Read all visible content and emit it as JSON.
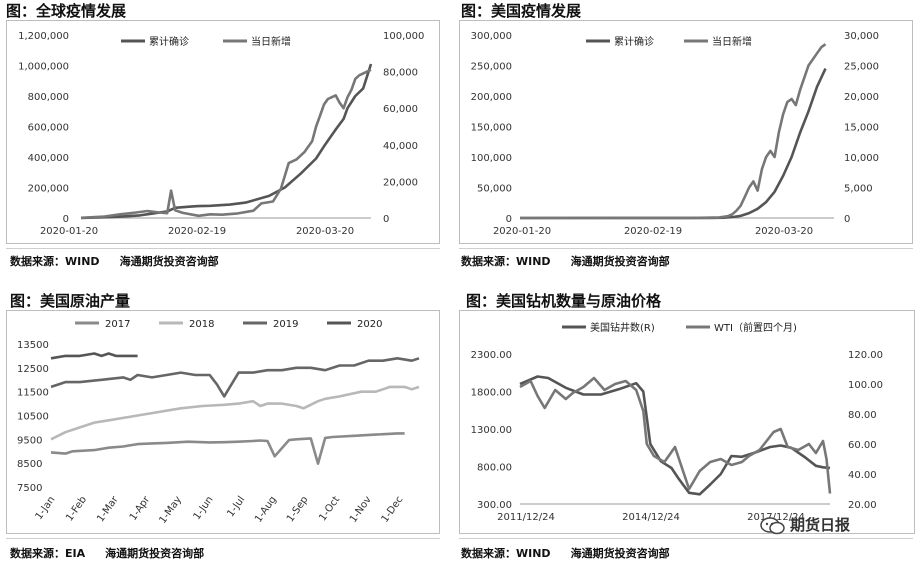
{
  "panels": {
    "p1": {
      "title": "图：全球疫情发展",
      "source_label": "数据来源：WIND",
      "source_org": "海通期货投资咨询部"
    },
    "p2": {
      "title": "图：美国疫情发展",
      "source_label": "数据来源：WIND",
      "source_org": "海通期货投资咨询部"
    },
    "p3": {
      "title": "图：美国原油产量",
      "source_label": "数据来源：EIA",
      "source_org": "海通期货投资咨询部"
    },
    "p4": {
      "title": "图：美国钻机数量与原油价格",
      "source_label": "数据来源：WIND",
      "source_org": "海通期货投资咨询部"
    }
  },
  "watermark": {
    "text": "期货日报",
    "icon": "wechat-icon"
  },
  "chart_data": [
    {
      "id": "global",
      "type": "line",
      "x_ticks": [
        "2020-01-20",
        "2020-02-19",
        "2020-03-20"
      ],
      "x_range": [
        0,
        74
      ],
      "y_left": {
        "ticks": [
          "0",
          "200,000",
          "400,000",
          "600,000",
          "800,000",
          "1,000,000",
          "1,200,000"
        ],
        "range": [
          0,
          1200000
        ]
      },
      "y_right": {
        "ticks": [
          "0",
          "20,000",
          "40,000",
          "60,000",
          "80,000",
          "100,000"
        ],
        "range": [
          0,
          100000
        ]
      },
      "legend_position": "top-right",
      "series": [
        {
          "name": "累计确诊",
          "axis": "left",
          "color": "#555555",
          "x": [
            0,
            8,
            15,
            18,
            22,
            24,
            28,
            30,
            33,
            38,
            42,
            48,
            52,
            56,
            60,
            62,
            65,
            67,
            68,
            70,
            72,
            73,
            74
          ],
          "y": [
            600,
            6000,
            17000,
            28000,
            43000,
            67000,
            75000,
            78000,
            80000,
            88000,
            101000,
            145000,
            200000,
            290000,
            390000,
            470000,
            580000,
            650000,
            720000,
            800000,
            850000,
            930000,
            1010000
          ]
        },
        {
          "name": "当日新增",
          "axis": "right",
          "color": "#777777",
          "x": [
            0,
            6,
            10,
            14,
            17,
            20,
            22,
            23,
            24,
            26,
            30,
            33,
            36,
            40,
            44,
            46,
            49,
            51,
            53,
            55,
            57,
            59,
            60,
            61,
            62,
            63,
            64,
            65,
            66,
            67,
            68,
            69,
            70,
            71,
            72,
            73,
            74
          ],
          "y": [
            100,
            800,
            2000,
            3000,
            3800,
            3000,
            2600,
            15000,
            4200,
            2800,
            1200,
            2000,
            1800,
            2500,
            4000,
            8000,
            9000,
            16000,
            30000,
            32000,
            36000,
            42000,
            50000,
            56000,
            62000,
            65000,
            66000,
            67000,
            63000,
            60000,
            66000,
            70000,
            76000,
            78000,
            79000,
            80000,
            81000
          ]
        }
      ]
    },
    {
      "id": "us",
      "type": "line",
      "x_ticks": [
        "2020-01-20",
        "2020-02-19",
        "2020-03-20"
      ],
      "x_range": [
        0,
        74
      ],
      "y_left": {
        "ticks": [
          "0",
          "50,000",
          "100,000",
          "150,000",
          "200,000",
          "250,000",
          "300,000"
        ],
        "range": [
          0,
          300000
        ]
      },
      "y_right": {
        "ticks": [
          "0",
          "5,000",
          "10,000",
          "15,000",
          "20,000",
          "25,000",
          "30,000"
        ],
        "range": [
          0,
          30000
        ]
      },
      "legend_position": "top-right",
      "series": [
        {
          "name": "累计确诊",
          "axis": "left",
          "color": "#555555",
          "x": [
            0,
            40,
            45,
            48,
            50,
            52,
            54,
            56,
            58,
            60,
            62,
            64,
            66,
            68,
            70,
            72
          ],
          "y": [
            0,
            100,
            200,
            500,
            1500,
            3500,
            8000,
            15000,
            26000,
            43000,
            69000,
            100000,
            140000,
            175000,
            215000,
            245000
          ]
        },
        {
          "name": "当日新增",
          "axis": "right",
          "color": "#777777",
          "x": [
            0,
            40,
            44,
            47,
            49,
            50,
            51,
            52,
            53,
            54,
            55,
            56,
            57,
            58,
            59,
            60,
            61,
            62,
            63,
            64,
            65,
            66,
            67,
            68,
            69,
            70,
            71,
            72
          ],
          "y": [
            0,
            10,
            50,
            100,
            300,
            600,
            1200,
            2000,
            3500,
            5000,
            6000,
            4500,
            8000,
            10000,
            11000,
            10000,
            14000,
            17000,
            19000,
            19500,
            18500,
            21000,
            23000,
            25000,
            26000,
            27000,
            28000,
            28500
          ]
        }
      ]
    },
    {
      "id": "us-crude-production",
      "type": "line",
      "categories": [
        "1-Jan",
        "1-Feb",
        "1-Mar",
        "1-Apr",
        "1-May",
        "1-Jun",
        "1-Jul",
        "1-Aug",
        "1-Sep",
        "1-Oct",
        "1-Nov",
        "1-Dec"
      ],
      "x_range": [
        1,
        52
      ],
      "y_ticks": [
        "13500",
        "12500",
        "11500",
        "10500",
        "9500",
        "8500",
        "7500"
      ],
      "ylim": [
        7500,
        13500
      ],
      "legend_position": "top",
      "series": [
        {
          "name": "2017",
          "color": "#8a8a8a",
          "x": [
            1,
            3,
            4,
            7,
            9,
            11,
            13,
            15,
            17,
            20,
            23,
            25,
            27,
            29,
            30,
            31,
            32,
            34,
            35,
            37,
            38,
            39,
            40,
            43,
            46,
            49,
            50
          ],
          "y": [
            8950,
            8900,
            9000,
            9050,
            9150,
            9200,
            9300,
            9330,
            9350,
            9400,
            9370,
            9380,
            9400,
            9430,
            9450,
            9430,
            8790,
            9470,
            9500,
            9540,
            8480,
            9560,
            9600,
            9650,
            9700,
            9750,
            9750
          ]
        },
        {
          "name": "2018",
          "color": "#b8b8b8",
          "x": [
            1,
            3,
            5,
            7,
            9,
            11,
            13,
            15,
            17,
            19,
            22,
            25,
            27,
            29,
            30,
            31,
            33,
            35,
            36,
            38,
            39,
            41,
            44,
            46,
            48,
            50,
            51,
            52
          ],
          "y": [
            9500,
            9800,
            10000,
            10200,
            10300,
            10400,
            10500,
            10600,
            10700,
            10800,
            10900,
            10950,
            11000,
            11100,
            10900,
            11000,
            11000,
            10900,
            10800,
            11100,
            11200,
            11300,
            11500,
            11500,
            11700,
            11700,
            11600,
            11700
          ]
        },
        {
          "name": "2019",
          "color": "#666666",
          "x": [
            1,
            3,
            5,
            8,
            11,
            12,
            13,
            15,
            17,
            19,
            21,
            23,
            24,
            25,
            27,
            28,
            29,
            31,
            33,
            35,
            37,
            39,
            41,
            43,
            45,
            47,
            49,
            51,
            52
          ],
          "y": [
            11700,
            11900,
            11900,
            12000,
            12100,
            12000,
            12200,
            12100,
            12200,
            12300,
            12200,
            12200,
            11800,
            11300,
            12300,
            12300,
            12300,
            12400,
            12400,
            12500,
            12500,
            12400,
            12600,
            12600,
            12800,
            12800,
            12900,
            12800,
            12900
          ]
        },
        {
          "name": "2020",
          "color": "#555555",
          "x": [
            1,
            3,
            5,
            7,
            8,
            9,
            10,
            11,
            12,
            13
          ],
          "y": [
            12900,
            13000,
            13000,
            13100,
            13000,
            13100,
            13000,
            13000,
            13000,
            13000
          ]
        }
      ]
    },
    {
      "id": "rig-count-vs-wti",
      "type": "line",
      "x_ticks": [
        "2011/12/24",
        "2014/12/24",
        "2017/12/24"
      ],
      "x_range": [
        2011.5,
        2020.3
      ],
      "y_left": {
        "ticks": [
          "300.00",
          "800.00",
          "1300.00",
          "1800.00",
          "2300.00"
        ],
        "range": [
          300,
          2300
        ]
      },
      "y_right": {
        "ticks": [
          "20.00",
          "40.00",
          "60.00",
          "80.00",
          "100.00",
          "120.00"
        ],
        "range": [
          20,
          120
        ]
      },
      "legend_position": "top-left",
      "series": [
        {
          "name": "美国钻井数(R)",
          "axis": "left",
          "color": "#555555",
          "x": [
            2011.5,
            2012.0,
            2012.3,
            2012.8,
            2013.3,
            2013.8,
            2014.3,
            2014.8,
            2015.0,
            2015.2,
            2015.5,
            2015.8,
            2016.0,
            2016.3,
            2016.6,
            2016.9,
            2017.2,
            2017.5,
            2017.8,
            2018.2,
            2018.6,
            2018.9,
            2019.2,
            2019.6,
            2019.9,
            2020.1,
            2020.3
          ],
          "y": [
            1900,
            2000,
            1980,
            1850,
            1760,
            1760,
            1830,
            1910,
            1800,
            1100,
            870,
            780,
            640,
            450,
            430,
            560,
            700,
            940,
            930,
            990,
            1060,
            1080,
            1050,
            920,
            810,
            790,
            780
          ]
        },
        {
          "name": "WTI（前置四个月)",
          "axis": "right",
          "color": "#777777",
          "x": [
            2011.5,
            2011.8,
            2012.0,
            2012.2,
            2012.5,
            2012.8,
            2013.0,
            2013.3,
            2013.6,
            2013.9,
            2014.2,
            2014.5,
            2014.8,
            2015.0,
            2015.1,
            2015.3,
            2015.6,
            2015.9,
            2016.1,
            2016.3,
            2016.6,
            2016.9,
            2017.2,
            2017.5,
            2017.8,
            2018.0,
            2018.3,
            2018.5,
            2018.7,
            2018.9,
            2019.1,
            2019.4,
            2019.7,
            2019.9,
            2020.1,
            2020.2,
            2020.3
          ],
          "y": [
            98,
            102,
            92,
            84,
            96,
            90,
            94,
            98,
            104,
            96,
            100,
            102,
            96,
            82,
            60,
            52,
            48,
            58,
            44,
            30,
            42,
            48,
            50,
            46,
            48,
            52,
            56,
            62,
            68,
            70,
            58,
            56,
            60,
            54,
            62,
            50,
            27
          ]
        }
      ]
    }
  ]
}
